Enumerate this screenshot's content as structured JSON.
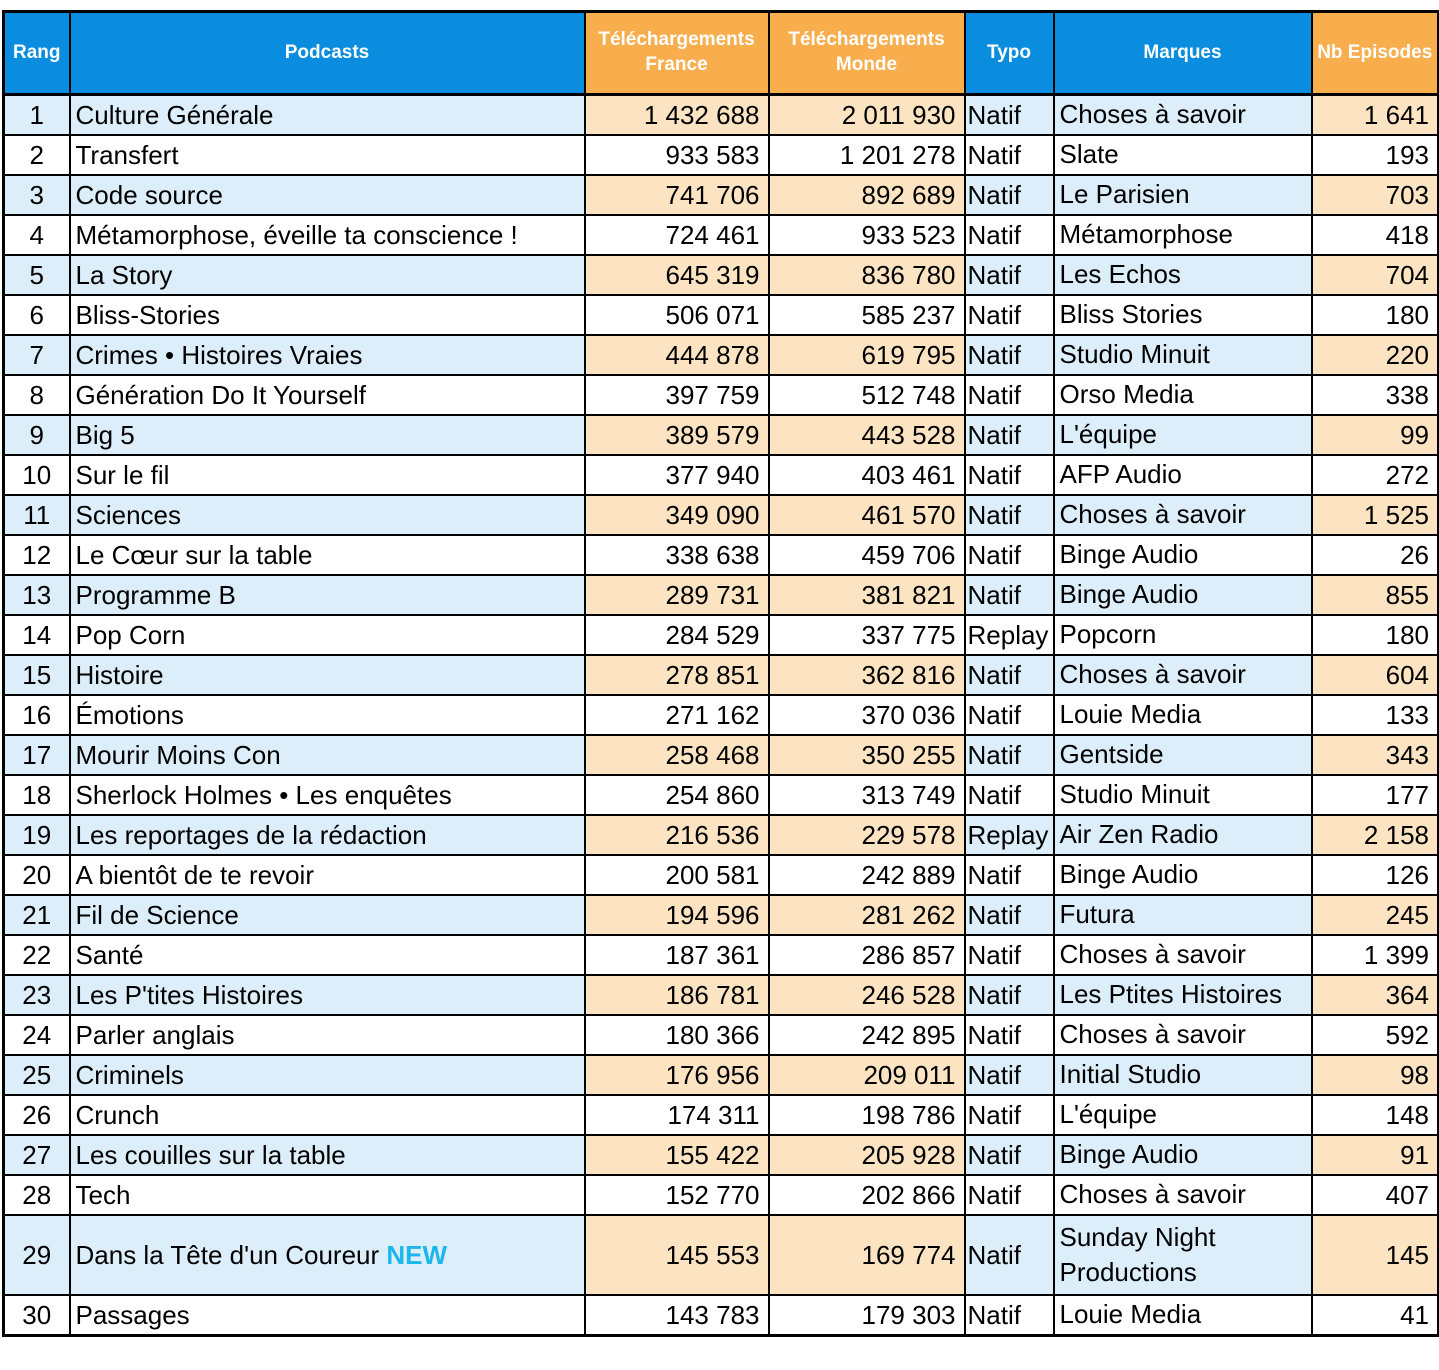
{
  "chart_data": {
    "type": "table",
    "columns": [
      {
        "key": "rang",
        "label": "Rang",
        "group": "blue",
        "align": "center"
      },
      {
        "key": "podcast",
        "label": "Podcasts",
        "group": "blue",
        "align": "left"
      },
      {
        "key": "dl_france",
        "label": "Téléchargements France",
        "group": "orange",
        "align": "right"
      },
      {
        "key": "dl_monde",
        "label": "Téléchargements Monde",
        "group": "orange",
        "align": "right"
      },
      {
        "key": "typo",
        "label": "Typo",
        "group": "blue",
        "align": "left"
      },
      {
        "key": "marque",
        "label": "Marques",
        "group": "blue",
        "align": "left"
      },
      {
        "key": "episodes",
        "label": "Nb Episodes",
        "group": "orange",
        "align": "right"
      }
    ],
    "rows": [
      {
        "rang": "1",
        "podcast": "Culture Générale",
        "dl_france": "1 432 688",
        "dl_monde": "2 011 930",
        "typo": "Natif",
        "marque": "Choses à savoir",
        "episodes": "1 641"
      },
      {
        "rang": "2",
        "podcast": "Transfert",
        "dl_france": "933 583",
        "dl_monde": "1 201 278",
        "typo": "Natif",
        "marque": "Slate",
        "episodes": "193"
      },
      {
        "rang": "3",
        "podcast": "Code source",
        "dl_france": "741 706",
        "dl_monde": "892 689",
        "typo": "Natif",
        "marque": "Le Parisien",
        "episodes": "703"
      },
      {
        "rang": "4",
        "podcast": "Métamorphose, éveille ta conscience !",
        "dl_france": "724 461",
        "dl_monde": "933 523",
        "typo": "Natif",
        "marque": "Métamorphose",
        "episodes": "418"
      },
      {
        "rang": "5",
        "podcast": "La Story",
        "dl_france": "645 319",
        "dl_monde": "836 780",
        "typo": "Natif",
        "marque": "Les Echos",
        "episodes": "704"
      },
      {
        "rang": "6",
        "podcast": "Bliss-Stories",
        "dl_france": "506 071",
        "dl_monde": "585 237",
        "typo": "Natif",
        "marque": "Bliss Stories",
        "episodes": "180"
      },
      {
        "rang": "7",
        "podcast": "Crimes • Histoires Vraies",
        "dl_france": "444 878",
        "dl_monde": "619 795",
        "typo": "Natif",
        "marque": "Studio Minuit",
        "episodes": "220"
      },
      {
        "rang": "8",
        "podcast": "Génération Do It Yourself",
        "dl_france": "397 759",
        "dl_monde": "512 748",
        "typo": "Natif",
        "marque": "Orso Media",
        "episodes": "338"
      },
      {
        "rang": "9",
        "podcast": "Big 5",
        "dl_france": "389 579",
        "dl_monde": "443 528",
        "typo": "Natif",
        "marque": "L'équipe",
        "episodes": "99"
      },
      {
        "rang": "10",
        "podcast": "Sur le fil",
        "dl_france": "377 940",
        "dl_monde": "403 461",
        "typo": "Natif",
        "marque": "AFP Audio",
        "episodes": "272"
      },
      {
        "rang": "11",
        "podcast": "Sciences",
        "dl_france": "349 090",
        "dl_monde": "461 570",
        "typo": "Natif",
        "marque": "Choses à savoir",
        "episodes": "1 525"
      },
      {
        "rang": "12",
        "podcast": "Le Cœur sur la table",
        "dl_france": "338 638",
        "dl_monde": "459 706",
        "typo": "Natif",
        "marque": "Binge Audio",
        "episodes": "26"
      },
      {
        "rang": "13",
        "podcast": "Programme B",
        "dl_france": "289 731",
        "dl_monde": "381 821",
        "typo": "Natif",
        "marque": "Binge Audio",
        "episodes": "855"
      },
      {
        "rang": "14",
        "podcast": "Pop Corn",
        "dl_france": "284 529",
        "dl_monde": "337 775",
        "typo": "Replay",
        "marque": "Popcorn",
        "episodes": "180"
      },
      {
        "rang": "15",
        "podcast": "Histoire",
        "dl_france": "278 851",
        "dl_monde": "362 816",
        "typo": "Natif",
        "marque": "Choses à savoir",
        "episodes": "604"
      },
      {
        "rang": "16",
        "podcast": "Émotions",
        "dl_france": "271 162",
        "dl_monde": "370 036",
        "typo": "Natif",
        "marque": "Louie Media",
        "episodes": "133"
      },
      {
        "rang": "17",
        "podcast": "Mourir Moins Con",
        "dl_france": "258 468",
        "dl_monde": "350 255",
        "typo": "Natif",
        "marque": "Gentside",
        "episodes": "343"
      },
      {
        "rang": "18",
        "podcast": "Sherlock Holmes • Les enquêtes",
        "dl_france": "254 860",
        "dl_monde": "313 749",
        "typo": "Natif",
        "marque": "Studio Minuit",
        "episodes": "177"
      },
      {
        "rang": "19",
        "podcast": "Les reportages de la rédaction",
        "dl_france": "216 536",
        "dl_monde": "229 578",
        "typo": "Replay",
        "marque": "Air Zen Radio",
        "episodes": "2 158"
      },
      {
        "rang": "20",
        "podcast": "A bientôt de te revoir",
        "dl_france": "200 581",
        "dl_monde": "242 889",
        "typo": "Natif",
        "marque": "Binge Audio",
        "episodes": "126"
      },
      {
        "rang": "21",
        "podcast": "Fil de Science",
        "dl_france": "194 596",
        "dl_monde": "281 262",
        "typo": "Natif",
        "marque": "Futura",
        "episodes": "245"
      },
      {
        "rang": "22",
        "podcast": "Santé",
        "dl_france": "187 361",
        "dl_monde": "286 857",
        "typo": "Natif",
        "marque": "Choses à savoir",
        "episodes": "1 399"
      },
      {
        "rang": "23",
        "podcast": "Les P'tites Histoires",
        "dl_france": "186 781",
        "dl_monde": "246 528",
        "typo": "Natif",
        "marque": "Les Ptites Histoires",
        "episodes": "364"
      },
      {
        "rang": "24",
        "podcast": "Parler anglais",
        "dl_france": "180 366",
        "dl_monde": "242 895",
        "typo": "Natif",
        "marque": "Choses à savoir",
        "episodes": "592"
      },
      {
        "rang": "25",
        "podcast": "Criminels",
        "dl_france": "176 956",
        "dl_monde": "209 011",
        "typo": "Natif",
        "marque": "Initial Studio",
        "episodes": "98"
      },
      {
        "rang": "26",
        "podcast": "Crunch",
        "dl_france": "174 311",
        "dl_monde": "198 786",
        "typo": "Natif",
        "marque": "L'équipe",
        "episodes": "148"
      },
      {
        "rang": "27",
        "podcast": "Les couilles sur la table",
        "dl_france": "155 422",
        "dl_monde": "205 928",
        "typo": "Natif",
        "marque": "Binge Audio",
        "episodes": "91"
      },
      {
        "rang": "28",
        "podcast": "Tech",
        "dl_france": "152 770",
        "dl_monde": "202 866",
        "typo": "Natif",
        "marque": "Choses à savoir",
        "episodes": "407"
      },
      {
        "rang": "29",
        "podcast": "Dans la Tête d'un Coureur",
        "dl_france": "145 553",
        "dl_monde": "169 774",
        "typo": "Natif",
        "marque": "Sunday Night Productions",
        "episodes": "145",
        "badge": "NEW",
        "tall": true
      },
      {
        "rang": "30",
        "podcast": "Passages",
        "dl_france": "143 783",
        "dl_monde": "179 303",
        "typo": "Natif",
        "marque": "Louie Media",
        "episodes": "41"
      }
    ]
  },
  "colors": {
    "header_blue": "#0A8DDE",
    "header_orange": "#F9AE4D",
    "row_blue": "#DCEEFA",
    "row_orange": "#FCE4C2",
    "grid_border": "#000000",
    "header_text": "#FFFFFF",
    "body_text": "#000000",
    "new_badge": "#1CB5EC",
    "page_background": "#FFFFFF"
  }
}
